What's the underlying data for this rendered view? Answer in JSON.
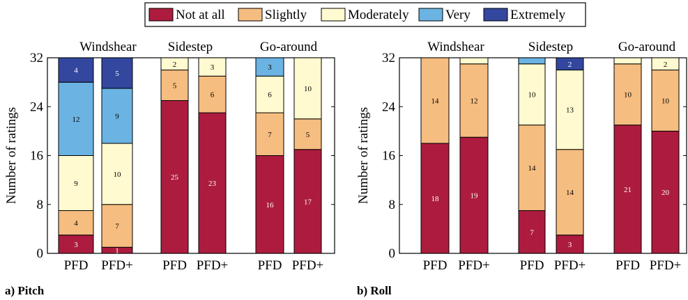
{
  "legend": {
    "items": [
      {
        "label": "Not at all",
        "color": "#AD1C3E"
      },
      {
        "label": "Slightly",
        "color": "#F6BD80"
      },
      {
        "label": "Moderately",
        "color": "#FFFAD0"
      },
      {
        "label": "Very",
        "color": "#6BB3E3"
      },
      {
        "label": "Extremely",
        "color": "#33479E"
      }
    ]
  },
  "chart_data": [
    {
      "type": "bar",
      "stacked": true,
      "caption": "a) Pitch",
      "ylabel": "Number of ratings",
      "ylim": [
        0,
        32
      ],
      "yticks": [
        0,
        8,
        16,
        24,
        32
      ],
      "groups": [
        {
          "name": "Windshear",
          "bars": [
            {
              "label": "PFD",
              "values": [
                3,
                4,
                9,
                12,
                4
              ]
            },
            {
              "label": "PFD+",
              "values": [
                1,
                7,
                10,
                9,
                5
              ]
            }
          ]
        },
        {
          "name": "Sidestep",
          "bars": [
            {
              "label": "PFD",
              "values": [
                25,
                5,
                2,
                0,
                0
              ]
            },
            {
              "label": "PFD+",
              "values": [
                23,
                6,
                3,
                0,
                0
              ]
            }
          ]
        },
        {
          "name": "Go-around",
          "bars": [
            {
              "label": "PFD",
              "values": [
                16,
                7,
                6,
                3,
                0
              ]
            },
            {
              "label": "PFD+",
              "values": [
                17,
                5,
                10,
                0,
                0
              ]
            }
          ]
        }
      ],
      "series": [
        "Not at all",
        "Slightly",
        "Moderately",
        "Very",
        "Extremely"
      ]
    },
    {
      "type": "bar",
      "stacked": true,
      "caption": "b) Roll",
      "ylabel": "Number of ratings",
      "ylim": [
        0,
        32
      ],
      "yticks": [
        0,
        8,
        16,
        24,
        32
      ],
      "groups": [
        {
          "name": "Windshear",
          "bars": [
            {
              "label": "PFD",
              "values": [
                18,
                14,
                0,
                0,
                0
              ]
            },
            {
              "label": "PFD+",
              "values": [
                19,
                12,
                1,
                0,
                0
              ]
            }
          ]
        },
        {
          "name": "Sidestep",
          "bars": [
            {
              "label": "PFD",
              "values": [
                7,
                14,
                10,
                1,
                0
              ]
            },
            {
              "label": "PFD+",
              "values": [
                3,
                14,
                13,
                0,
                2
              ]
            }
          ]
        },
        {
          "name": "Go-around",
          "bars": [
            {
              "label": "PFD",
              "values": [
                21,
                10,
                1,
                0,
                0
              ]
            },
            {
              "label": "PFD+",
              "values": [
                20,
                10,
                2,
                0,
                0
              ]
            }
          ]
        }
      ],
      "series": [
        "Not at all",
        "Slightly",
        "Moderately",
        "Very",
        "Extremely"
      ]
    }
  ]
}
